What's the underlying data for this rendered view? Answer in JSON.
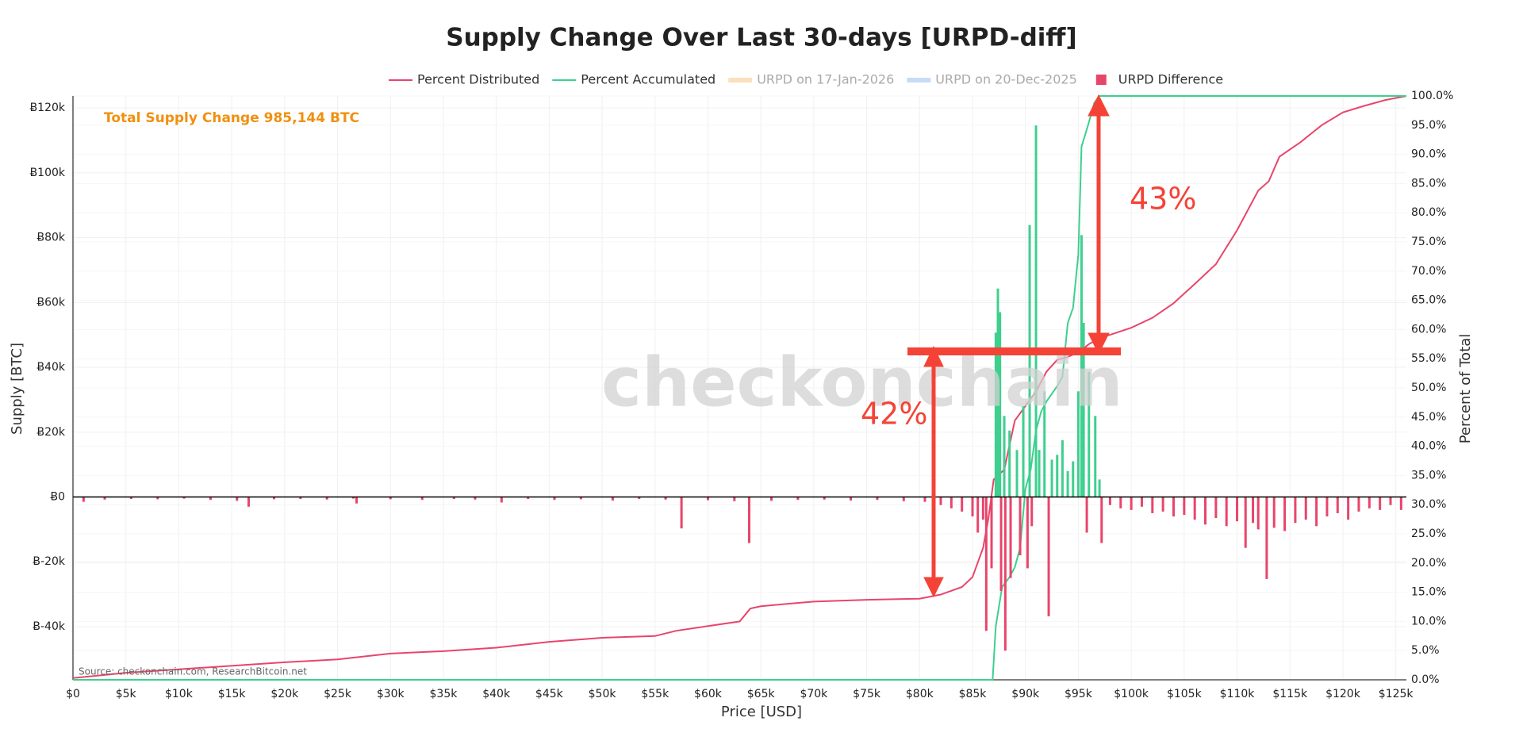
{
  "chart_data": {
    "type": "combo",
    "title": "Supply Change Over Last 30-days [URPD-diff]",
    "x_label": "Price [USD]",
    "y_label": "Supply [BTC]",
    "y2_label": "Percent of Total",
    "annotations": [
      "Total Supply Change 985,144 BTC",
      "43%",
      "42%"
    ],
    "watermark": "checkonchain",
    "source": "Source: checkonchain.com, ResearchBitcoin.net",
    "grid": true,
    "legend": "top",
    "xlim": [
      0,
      126000
    ],
    "ylim": [
      -56400,
      123700
    ],
    "y2lim": [
      0,
      100
    ],
    "xticks": [
      {
        "value": 0,
        "label": "$0"
      },
      {
        "value": 5000,
        "label": "$5k"
      },
      {
        "value": 10000,
        "label": "$10k"
      },
      {
        "value": 15000,
        "label": "$15k"
      },
      {
        "value": 20000,
        "label": "$20k"
      },
      {
        "value": 25000,
        "label": "$25k"
      },
      {
        "value": 30000,
        "label": "$30k"
      },
      {
        "value": 35000,
        "label": "$35k"
      },
      {
        "value": 40000,
        "label": "$40k"
      },
      {
        "value": 45000,
        "label": "$45k"
      },
      {
        "value": 50000,
        "label": "$50k"
      },
      {
        "value": 55000,
        "label": "$55k"
      },
      {
        "value": 60000,
        "label": "$60k"
      },
      {
        "value": 65000,
        "label": "$65k"
      },
      {
        "value": 70000,
        "label": "$70k"
      },
      {
        "value": 75000,
        "label": "$75k"
      },
      {
        "value": 80000,
        "label": "$80k"
      },
      {
        "value": 85000,
        "label": "$85k"
      },
      {
        "value": 90000,
        "label": "$90k"
      },
      {
        "value": 95000,
        "label": "$95k"
      },
      {
        "value": 100000,
        "label": "$100k"
      },
      {
        "value": 105000,
        "label": "$105k"
      },
      {
        "value": 110000,
        "label": "$110k"
      },
      {
        "value": 115000,
        "label": "$115k"
      },
      {
        "value": 120000,
        "label": "$120k"
      },
      {
        "value": 125000,
        "label": "$125k"
      }
    ],
    "yticks": [
      {
        "value": -40000,
        "label": "Ƀ-40k"
      },
      {
        "value": -20000,
        "label": "Ƀ-20k"
      },
      {
        "value": 0,
        "label": "Ƀ0"
      },
      {
        "value": 20000,
        "label": "Ƀ20k"
      },
      {
        "value": 40000,
        "label": "Ƀ40k"
      },
      {
        "value": 60000,
        "label": "Ƀ60k"
      },
      {
        "value": 80000,
        "label": "Ƀ80k"
      },
      {
        "value": 100000,
        "label": "Ƀ100k"
      },
      {
        "value": 120000,
        "label": "Ƀ120k"
      }
    ],
    "y2ticks": [
      {
        "value": 0,
        "label": "0.0%"
      },
      {
        "value": 5,
        "label": "5.0%"
      },
      {
        "value": 10,
        "label": "10.0%"
      },
      {
        "value": 15,
        "label": "15.0%"
      },
      {
        "value": 20,
        "label": "20.0%"
      },
      {
        "value": 25,
        "label": "25.0%"
      },
      {
        "value": 30,
        "label": "30.0%"
      },
      {
        "value": 35,
        "label": "35.0%"
      },
      {
        "value": 40,
        "label": "40.0%"
      },
      {
        "value": 45,
        "label": "45.0%"
      },
      {
        "value": 50,
        "label": "50.0%"
      },
      {
        "value": 55,
        "label": "55.0%"
      },
      {
        "value": 60,
        "label": "60.0%"
      },
      {
        "value": 65,
        "label": "65.0%"
      },
      {
        "value": 70,
        "label": "70.0%"
      },
      {
        "value": 75,
        "label": "75.0%"
      },
      {
        "value": 80,
        "label": "80.0%"
      },
      {
        "value": 85,
        "label": "85.0%"
      },
      {
        "value": 90,
        "label": "90.0%"
      },
      {
        "value": 95,
        "label": "95.0%"
      },
      {
        "value": 100,
        "label": "100.0%"
      }
    ],
    "series": [
      {
        "name": "Percent Distributed",
        "type": "line",
        "axis": "y2",
        "color": "#e8456b",
        "x": [
          0,
          5000,
          10000,
          20000,
          25000,
          30000,
          35000,
          40000,
          45000,
          50000,
          55000,
          57000,
          60000,
          63000,
          64000,
          65000,
          68000,
          70000,
          75000,
          80000,
          82000,
          84000,
          85000,
          86000,
          86500,
          87000,
          88000,
          89000,
          90000,
          91000,
          92000,
          93000,
          94000,
          95000,
          96000,
          97000,
          98000,
          100000,
          102000,
          104000,
          106000,
          108000,
          110000,
          111000,
          112000,
          113000,
          114000,
          116000,
          118000,
          120000,
          122000,
          124000,
          126000
        ],
        "values": [
          0.3,
          1.2,
          1.8,
          3.0,
          3.5,
          4.5,
          4.9,
          5.5,
          6.5,
          7.2,
          7.5,
          8.4,
          9.2,
          10,
          12.2,
          12.6,
          13.1,
          13.4,
          13.7,
          13.9,
          14.6,
          15.9,
          17.6,
          22.6,
          27.6,
          34.3,
          36,
          44.4,
          46.9,
          49.4,
          52.8,
          54.8,
          55.3,
          56.1,
          57.5,
          58.5,
          59.1,
          60.3,
          62,
          64.5,
          67.8,
          71.2,
          77,
          80.4,
          83.8,
          85.4,
          89.6,
          92.1,
          95,
          97.2,
          98.3,
          99.3,
          100
        ]
      },
      {
        "name": "Percent Accumulated",
        "type": "line",
        "axis": "y2",
        "color": "#3ecf8e",
        "x": [
          0,
          86900,
          87200,
          87800,
          88500,
          89000,
          89500,
          90000,
          90500,
          91000,
          91500,
          92000,
          93000,
          93500,
          94000,
          94500,
          95000,
          95300,
          96000,
          96500,
          97000,
          126000
        ],
        "values": [
          0,
          0,
          9.2,
          15.9,
          17.6,
          19.3,
          22.6,
          32.7,
          36,
          42.7,
          46,
          47.7,
          50.3,
          51.9,
          61.1,
          63.7,
          72.9,
          91.3,
          95.5,
          98.8,
          100,
          100
        ]
      },
      {
        "name": "URPD on 17-Jan-2026",
        "type": "hidden",
        "color": "#fbe0bd"
      },
      {
        "name": "URPD on 20-Dec-2025",
        "type": "hidden",
        "color": "#c6dcf7"
      },
      {
        "name": "URPD Difference",
        "type": "bar",
        "axis": "y",
        "color": "#e8456b",
        "positive_color": "#3ecf8e",
        "x": [
          1000,
          3000,
          5500,
          8000,
          10500,
          13000,
          15500,
          16600,
          19000,
          21500,
          24000,
          26500,
          26800,
          30000,
          33000,
          36000,
          38000,
          40500,
          43000,
          45500,
          48000,
          51000,
          53500,
          56000,
          57500,
          60000,
          62500,
          63900,
          66000,
          68500,
          71000,
          73500,
          76000,
          78500,
          80500,
          82000,
          83000,
          84000,
          85000,
          85500,
          86000,
          86300,
          86800,
          87200,
          87400,
          87600,
          87700,
          88000,
          88100,
          88500,
          88600,
          89200,
          89500,
          89800,
          90200,
          90400,
          90600,
          91000,
          91300,
          91800,
          92200,
          92500,
          93000,
          93500,
          94000,
          94500,
          95000,
          95300,
          95500,
          95800,
          96000,
          96600,
          97000,
          97200,
          98000,
          99000,
          100000,
          101000,
          102000,
          103000,
          104000,
          105000,
          106000,
          107000,
          108000,
          109000,
          110000,
          110800,
          111500,
          112000,
          112800,
          113500,
          114500,
          115500,
          116500,
          117500,
          118500,
          119500,
          120500,
          121500,
          122500,
          123500,
          124500,
          125500
        ],
        "values": [
          -1500,
          -800,
          -600,
          -700,
          -500,
          -900,
          -1200,
          -3000,
          -700,
          -600,
          -800,
          -500,
          -2000,
          -700,
          -900,
          -600,
          -800,
          -1700,
          -600,
          -900,
          -700,
          -1100,
          -600,
          -800,
          -9700,
          -1000,
          -1300,
          -14200,
          -1200,
          -900,
          -800,
          -1100,
          -900,
          -1300,
          -1500,
          -2500,
          -3500,
          -4500,
          -6000,
          -11000,
          -7000,
          -41300,
          -22000,
          50700,
          64300,
          57000,
          -29000,
          25000,
          -47400,
          20500,
          -25000,
          14500,
          -18000,
          28000,
          -22000,
          83900,
          -9000,
          114600,
          14500,
          32600,
          -36800,
          11500,
          13000,
          17500,
          8000,
          11000,
          32600,
          80800,
          53700,
          -11000,
          38600,
          25000,
          5400,
          -14200,
          -2500,
          -3500,
          -4000,
          -3000,
          -5000,
          -4500,
          -6000,
          -5500,
          -7000,
          -8500,
          -6500,
          -9000,
          -7500,
          -15700,
          -8000,
          -10000,
          -25300,
          -9500,
          -10500,
          -8000,
          -7000,
          -9000,
          -6000,
          -5000,
          -7000,
          -4500,
          -3500,
          -4000,
          -2500,
          -4000
        ]
      }
    ]
  }
}
